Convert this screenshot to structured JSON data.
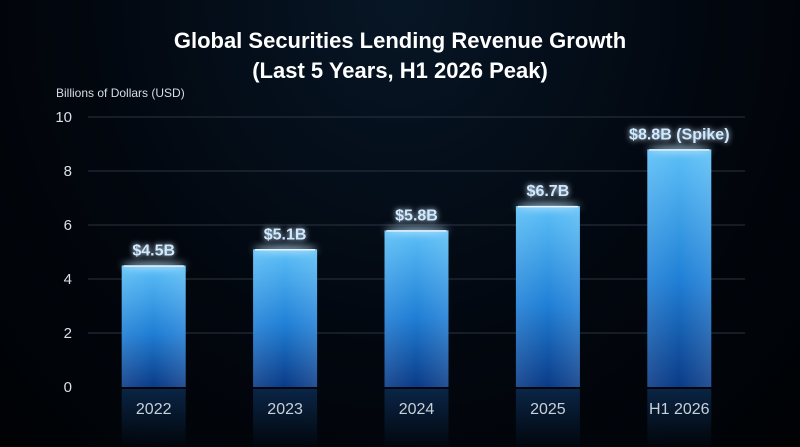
{
  "chart_data": {
    "type": "bar",
    "title_line1": "Global Securities Lending Revenue Growth",
    "title_line2": "(Last 5 Years, H1 2026 Peak)",
    "ylabel": "Billions of Dollars (USD)",
    "xlabel": "",
    "categories": [
      "2022",
      "2023",
      "2024",
      "2025",
      "H1 2026"
    ],
    "values": [
      4.5,
      5.1,
      5.8,
      6.7,
      8.8
    ],
    "data_labels": [
      "$4.5B",
      "$5.1B",
      "$5.8B",
      "$6.7B",
      "$8.8B (Spike)"
    ],
    "ylim": [
      0,
      10
    ],
    "yticks": [
      0,
      2,
      4,
      6,
      8,
      10
    ],
    "grid": true,
    "legend": "none",
    "colors": {
      "bar_top": "#4fb6f5",
      "bar_bottom": "#0a3f8a",
      "axis": "#1f8fff",
      "grid": "#2a3340",
      "background": "#02070f"
    }
  }
}
